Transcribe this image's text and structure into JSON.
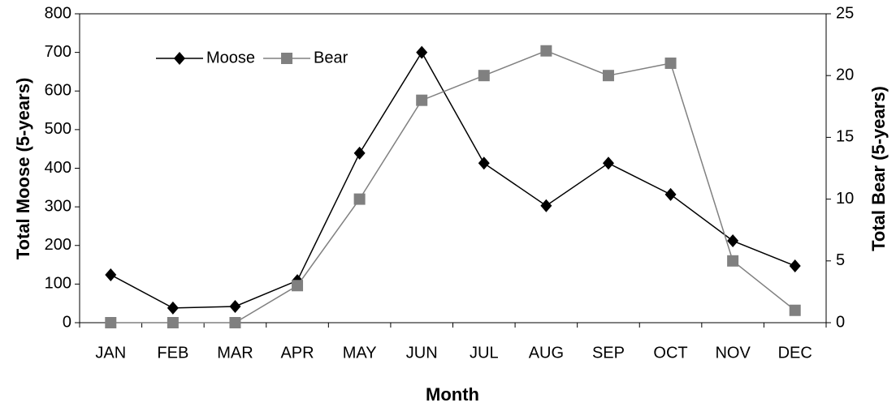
{
  "chart_data": {
    "type": "line",
    "x_label": "Month",
    "y_label": "Total Moose (5-years)",
    "y2_label": "Total Bear (5-years)",
    "categories": [
      "JAN",
      "FEB",
      "MAR",
      "APR",
      "MAY",
      "JUN",
      "JUL",
      "AUG",
      "SEP",
      "OCT",
      "NOV",
      "DEC"
    ],
    "series": [
      {
        "name": "Moose",
        "color": "#000000",
        "marker": "diamond",
        "values": [
          124,
          38,
          42,
          109,
          439,
          700,
          413,
          303,
          413,
          332,
          212,
          147
        ]
      },
      {
        "name": "Bear",
        "color": "#808080",
        "marker": "square",
        "axis": "y2",
        "values": [
          0,
          0,
          0,
          3,
          10,
          18,
          20,
          22,
          20,
          21,
          5,
          1
        ]
      }
    ],
    "ylim": [
      0,
      800
    ],
    "yticks": [
      0,
      100,
      200,
      300,
      400,
      500,
      600,
      700,
      800
    ],
    "y2lim": [
      0,
      25
    ],
    "y2ticks": [
      0,
      5,
      10,
      15,
      20,
      25
    ],
    "grid": false,
    "legend": "top-left"
  }
}
